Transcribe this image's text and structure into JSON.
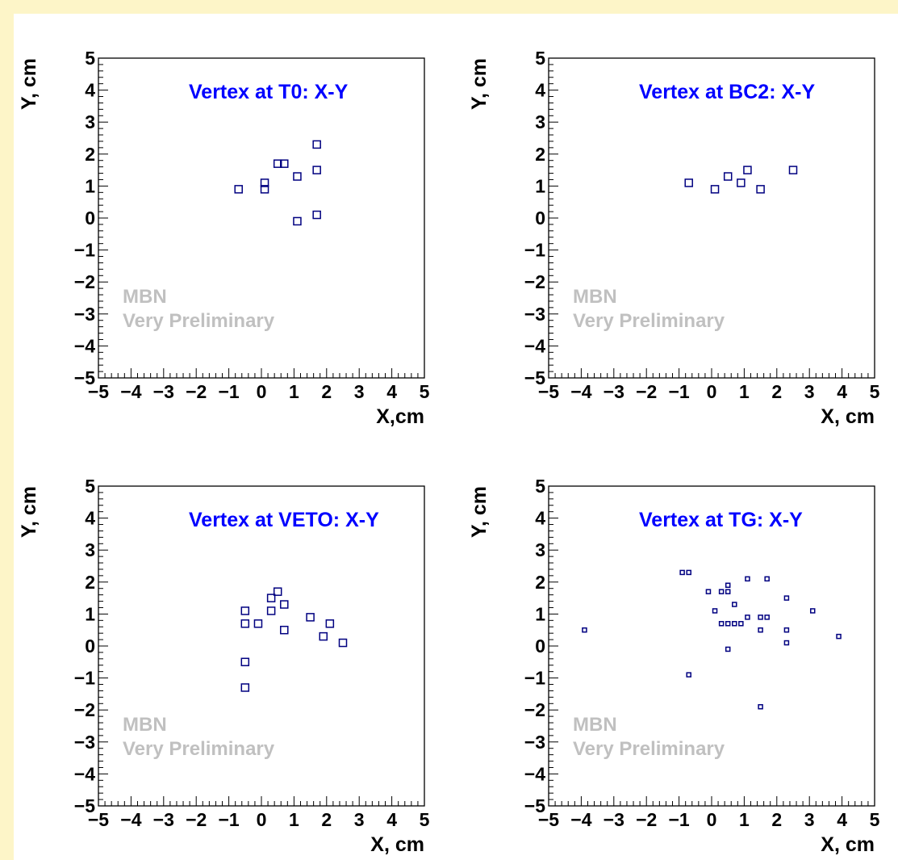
{
  "colors": {
    "outer_background": "#fdf5c8",
    "pad_background": "#ffffff",
    "marker": "#000080",
    "title_text": "#0000ff",
    "watermark": "#c0c0c0",
    "axis": "#000000"
  },
  "chart_data": [
    {
      "type": "scatter",
      "title": "Vertex at T0: X-Y",
      "xlabel": "X,cm",
      "ylabel": "Y, cm",
      "xlim": [
        -5,
        5
      ],
      "ylim": [
        -5,
        5
      ],
      "xticks": [
        "−5",
        "−4",
        "−3",
        "−2",
        "−1",
        "0",
        "1",
        "2",
        "3",
        "4",
        "5"
      ],
      "yticks": [
        "−5",
        "−4",
        "−3",
        "−2",
        "−1",
        "0",
        "1",
        "2",
        "3",
        "4",
        "5"
      ],
      "watermark": [
        "MBN",
        "Very Preliminary"
      ],
      "grid": false,
      "marker": "open-square",
      "points": [
        {
          "x": -0.7,
          "y": 0.9
        },
        {
          "x": 0.1,
          "y": 1.1
        },
        {
          "x": 0.1,
          "y": 0.9
        },
        {
          "x": 0.5,
          "y": 1.7
        },
        {
          "x": 0.7,
          "y": 1.7
        },
        {
          "x": 1.1,
          "y": 1.3
        },
        {
          "x": 1.1,
          "y": -0.1
        },
        {
          "x": 1.7,
          "y": 2.3
        },
        {
          "x": 1.7,
          "y": 1.5
        },
        {
          "x": 1.7,
          "y": 0.1
        }
      ]
    },
    {
      "type": "scatter",
      "title": "Vertex at BC2: X-Y",
      "xlabel": "X, cm",
      "ylabel": "Y, cm",
      "xlim": [
        -5,
        5
      ],
      "ylim": [
        -5,
        5
      ],
      "xticks": [
        "−5",
        "−4",
        "−3",
        "−2",
        "−1",
        "0",
        "1",
        "2",
        "3",
        "4",
        "5"
      ],
      "yticks": [
        "−5",
        "−4",
        "−3",
        "−2",
        "−1",
        "0",
        "1",
        "2",
        "3",
        "4",
        "5"
      ],
      "watermark": [
        "MBN",
        "Very Preliminary"
      ],
      "grid": false,
      "marker": "open-square",
      "points": [
        {
          "x": -0.7,
          "y": 1.1
        },
        {
          "x": 0.1,
          "y": 0.9
        },
        {
          "x": 0.5,
          "y": 1.3
        },
        {
          "x": 0.9,
          "y": 1.1
        },
        {
          "x": 1.1,
          "y": 1.5
        },
        {
          "x": 1.5,
          "y": 0.9
        },
        {
          "x": 2.5,
          "y": 1.5
        }
      ]
    },
    {
      "type": "scatter",
      "title": "Vertex at VETO: X-Y",
      "xlabel": "X, cm",
      "ylabel": "Y, cm",
      "xlim": [
        -5,
        5
      ],
      "ylim": [
        -5,
        5
      ],
      "xticks": [
        "−5",
        "−4",
        "−3",
        "−2",
        "−1",
        "0",
        "1",
        "2",
        "3",
        "4",
        "5"
      ],
      "yticks": [
        "−5",
        "−4",
        "−3",
        "−2",
        "−1",
        "0",
        "1",
        "2",
        "3",
        "4",
        "5"
      ],
      "watermark": [
        "MBN",
        "Very Preliminary"
      ],
      "grid": false,
      "marker": "open-square",
      "points": [
        {
          "x": -0.5,
          "y": 1.1
        },
        {
          "x": -0.5,
          "y": 0.7
        },
        {
          "x": -0.5,
          "y": -0.5
        },
        {
          "x": -0.5,
          "y": -1.3
        },
        {
          "x": -0.1,
          "y": 0.7
        },
        {
          "x": 0.3,
          "y": 1.5
        },
        {
          "x": 0.3,
          "y": 1.1
        },
        {
          "x": 0.5,
          "y": 1.7
        },
        {
          "x": 0.7,
          "y": 1.3
        },
        {
          "x": 0.7,
          "y": 0.5
        },
        {
          "x": 1.5,
          "y": 0.9
        },
        {
          "x": 1.9,
          "y": 0.3
        },
        {
          "x": 2.1,
          "y": 0.7
        },
        {
          "x": 2.5,
          "y": 0.1
        }
      ]
    },
    {
      "type": "scatter",
      "title": "Vertex at TG: X-Y",
      "xlabel": "X, cm",
      "ylabel": "Y, cm",
      "xlim": [
        -5,
        5
      ],
      "ylim": [
        -5,
        5
      ],
      "xticks": [
        "−5",
        "−4",
        "−3",
        "−2",
        "−1",
        "0",
        "1",
        "2",
        "3",
        "4",
        "5"
      ],
      "yticks": [
        "−5",
        "−4",
        "−3",
        "−2",
        "−1",
        "0",
        "1",
        "2",
        "3",
        "4",
        "5"
      ],
      "watermark": [
        "MBN",
        "Very Preliminary"
      ],
      "grid": false,
      "marker": "open-square",
      "points": [
        {
          "x": -3.9,
          "y": 0.5
        },
        {
          "x": -0.9,
          "y": 2.3
        },
        {
          "x": -0.7,
          "y": 2.3
        },
        {
          "x": -0.7,
          "y": -0.9
        },
        {
          "x": -0.1,
          "y": 1.7
        },
        {
          "x": 0.1,
          "y": 1.1
        },
        {
          "x": 0.3,
          "y": 1.7
        },
        {
          "x": 0.3,
          "y": 0.7
        },
        {
          "x": 0.5,
          "y": 1.9
        },
        {
          "x": 0.5,
          "y": 1.7
        },
        {
          "x": 0.5,
          "y": 0.7
        },
        {
          "x": 0.5,
          "y": -0.1
        },
        {
          "x": 0.7,
          "y": 1.3
        },
        {
          "x": 0.7,
          "y": 0.7
        },
        {
          "x": 0.9,
          "y": 0.7
        },
        {
          "x": 1.1,
          "y": 2.1
        },
        {
          "x": 1.1,
          "y": 0.9
        },
        {
          "x": 1.5,
          "y": 0.9
        },
        {
          "x": 1.5,
          "y": 0.5
        },
        {
          "x": 1.5,
          "y": -1.9
        },
        {
          "x": 1.7,
          "y": 2.1
        },
        {
          "x": 1.7,
          "y": 0.9
        },
        {
          "x": 2.3,
          "y": 1.5
        },
        {
          "x": 2.3,
          "y": 0.5
        },
        {
          "x": 2.3,
          "y": 0.1
        },
        {
          "x": 3.1,
          "y": 1.1
        },
        {
          "x": 3.9,
          "y": 0.3
        }
      ]
    }
  ]
}
